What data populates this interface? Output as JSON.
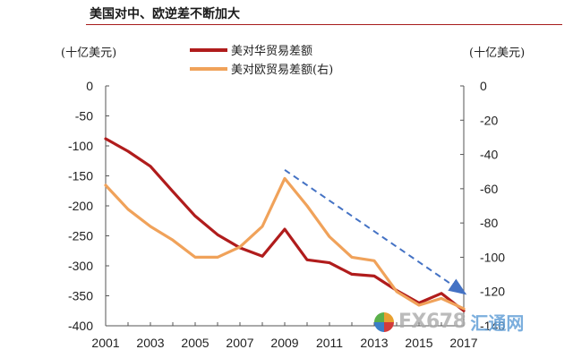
{
  "title": "美国对中、欧逆差不断加大",
  "watermark": {
    "brand": "FX678",
    "suffix": "汇通网",
    "icon": "fx678-logo-icon"
  },
  "chart_data": {
    "type": "line",
    "title": "美国对中、欧逆差不断加大",
    "x": [
      2001,
      2002,
      2003,
      2004,
      2005,
      2006,
      2007,
      2008,
      2009,
      2010,
      2011,
      2012,
      2013,
      2014,
      2015,
      2016,
      2017
    ],
    "x_ticks": [
      "2001",
      "2003",
      "2005",
      "2007",
      "2009",
      "2011",
      "2013",
      "2015",
      "2017"
    ],
    "y_left": {
      "label": "(十亿美元)",
      "range": [
        -400,
        0
      ],
      "ticks": [
        "0",
        "-50",
        "-100",
        "-150",
        "-200",
        "-250",
        "-300",
        "-350",
        "-400"
      ]
    },
    "y_right": {
      "label": "(十亿美元)",
      "range": [
        -140,
        0
      ],
      "ticks": [
        "0",
        "-20",
        "-40",
        "-60",
        "-80",
        "-100",
        "-120",
        "-140"
      ]
    },
    "series": [
      {
        "name": "美对华贸易差额",
        "axis": "left",
        "color": "#b01c1c",
        "values": [
          -88,
          -109,
          -134,
          -176,
          -217,
          -248,
          -270,
          -284,
          -239,
          -290,
          -295,
          -314,
          -317,
          -341,
          -362,
          -346,
          -375
        ]
      },
      {
        "name": "美对欧贸易差额(右)",
        "axis": "right",
        "color": "#f0a25a",
        "values": [
          -58,
          -72,
          -82,
          -90,
          -100,
          -100,
          -94,
          -82,
          -54,
          -70,
          -88,
          -100,
          -102,
          -120,
          -128,
          -124,
          -130
        ]
      }
    ],
    "annotation": {
      "type": "arrow",
      "style": "dashed",
      "color": "#4472c4",
      "from": [
        2009,
        -140
      ],
      "to": [
        2017,
        -345
      ]
    },
    "grid": false,
    "legend_position": "top-center"
  }
}
